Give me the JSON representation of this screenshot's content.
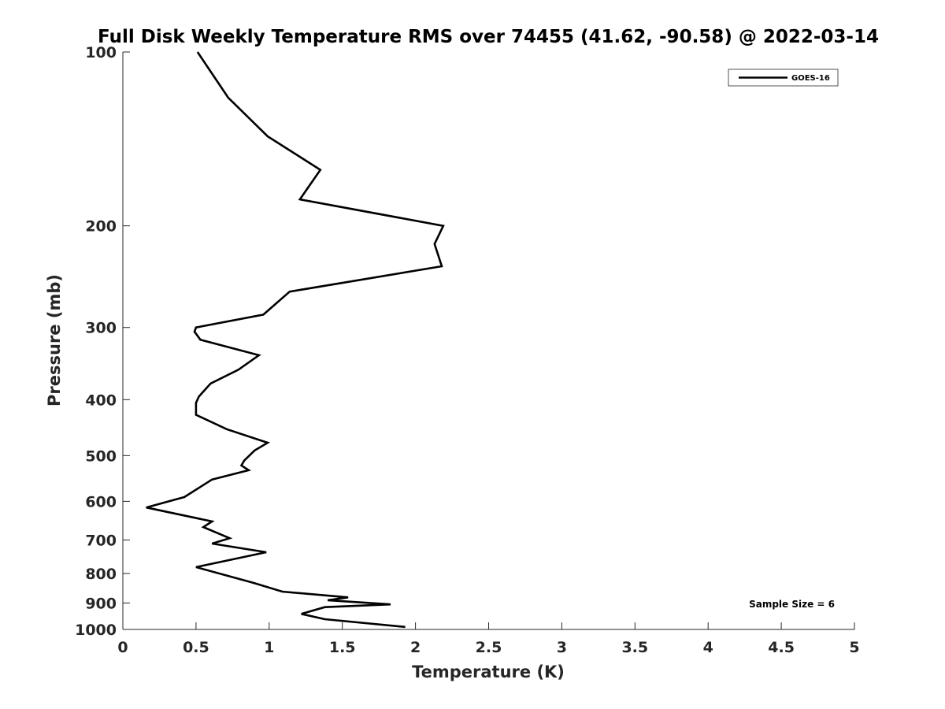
{
  "chart_data": {
    "type": "line",
    "title": "Full Disk Weekly Temperature RMS over 74455 (41.62, -90.58) @ 2022-03-14",
    "xlabel": "Temperature (K)",
    "ylabel": "Pressure (mb)",
    "xlim": [
      0,
      5
    ],
    "ylim": [
      100,
      1000
    ],
    "y_scale": "log",
    "y_reversed": true,
    "x_ticks": [
      "0",
      "0.5",
      "1",
      "1.5",
      "2",
      "2.5",
      "3",
      "3.5",
      "4",
      "4.5",
      "5"
    ],
    "y_ticks": [
      "100",
      "200",
      "300",
      "400",
      "500",
      "600",
      "700",
      "800",
      "900",
      "1000"
    ],
    "grid": false,
    "legend_position": "top-right",
    "series": [
      {
        "name": "GOES-16",
        "color": "#000000",
        "x": [
          0.51,
          0.72,
          0.99,
          1.35,
          1.21,
          2.19,
          2.13,
          2.18,
          1.14,
          0.96,
          0.5,
          0.49,
          0.53,
          0.93,
          0.79,
          0.6,
          0.52,
          0.5,
          0.5,
          0.71,
          0.99,
          0.9,
          0.83,
          0.81,
          0.86,
          0.61,
          0.42,
          0.16,
          0.61,
          0.55,
          0.73,
          0.61,
          0.98,
          0.5,
          0.89,
          1.09,
          1.54,
          1.4,
          1.83,
          1.38,
          1.22,
          1.38,
          1.93
        ],
        "y": [
          100,
          120,
          140,
          160,
          180,
          200,
          215,
          235,
          260,
          285,
          300,
          305,
          315,
          335,
          355,
          375,
          395,
          405,
          425,
          450,
          475,
          490,
          510,
          520,
          530,
          550,
          590,
          615,
          650,
          665,
          695,
          710,
          735,
          780,
          830,
          860,
          880,
          890,
          905,
          915,
          940,
          960,
          990
        ]
      }
    ],
    "annotations": [
      "Sample Size = 6"
    ]
  }
}
